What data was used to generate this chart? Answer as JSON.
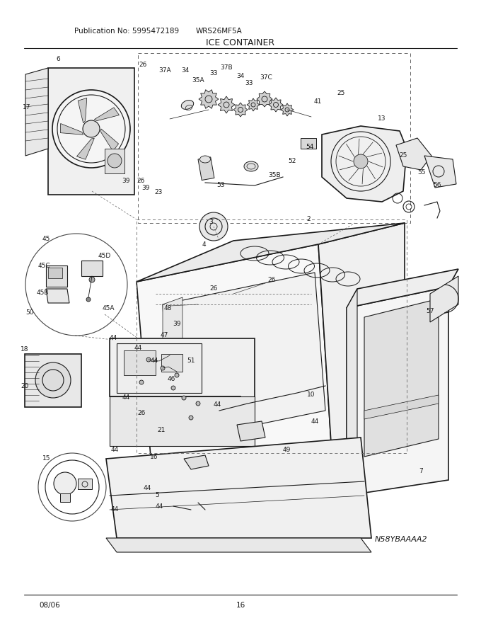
{
  "title": "ICE CONTAINER",
  "pub_no": "Publication No: 5995472189",
  "model": "WRS26MF5A",
  "diagram_code": "N58YBAAAA2",
  "date": "08/06",
  "page": "16",
  "bg_color": "#ffffff",
  "line_color": "#1a1a1a",
  "fig_width": 6.8,
  "fig_height": 8.8,
  "dpi": 100
}
